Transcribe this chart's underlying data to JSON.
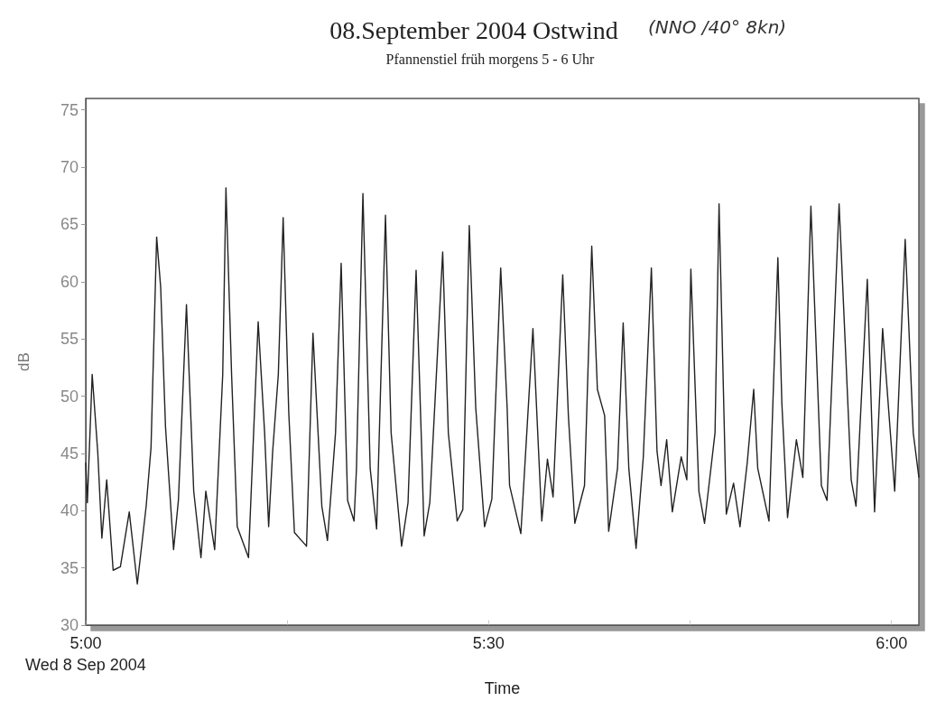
{
  "chart_data": {
    "type": "line",
    "title": "08.September 2004 Ostwind",
    "subtitle": "Pfannenstiel früh morgens 5 - 6 Uhr",
    "xlabel": "Time",
    "ylabel": "dB",
    "annotations": [
      "(NNO /40° 8kn)"
    ],
    "xlim": [
      5,
      6.034
    ],
    "ylim": [
      30,
      76
    ],
    "xticks": [
      {
        "value": 5,
        "label": "5:00\nWed 8 Sep 2004"
      },
      {
        "value": 5.25,
        "label": null
      },
      {
        "value": 5.5,
        "label": "5:30"
      },
      {
        "value": 5.75,
        "label": null
      },
      {
        "value": 6,
        "label": "6:00"
      }
    ],
    "yticks": [
      30,
      35,
      40,
      45,
      50,
      55,
      60,
      65,
      70,
      75
    ],
    "grid": false,
    "marker": "none",
    "line_style": "solid",
    "series": [
      {
        "color": "#222222",
        "x": [
          5.0,
          5.002,
          5.008,
          5.015,
          5.02,
          5.026,
          5.034,
          5.043,
          5.054,
          5.064,
          5.075,
          5.081,
          5.088,
          5.093,
          5.099,
          5.109,
          5.115,
          5.125,
          5.134,
          5.143,
          5.149,
          5.16,
          5.17,
          5.174,
          5.181,
          5.188,
          5.202,
          5.214,
          5.222,
          5.227,
          5.232,
          5.239,
          5.245,
          5.252,
          5.259,
          5.274,
          5.282,
          5.293,
          5.3,
          5.31,
          5.317,
          5.325,
          5.333,
          5.336,
          5.344,
          5.353,
          5.361,
          5.372,
          5.379,
          5.392,
          5.4,
          5.41,
          5.417,
          5.42,
          5.427,
          5.443,
          5.45,
          5.461,
          5.468,
          5.476,
          5.484,
          5.495,
          5.504,
          5.515,
          5.523,
          5.526,
          5.54,
          5.555,
          5.562,
          5.566,
          5.573,
          5.58,
          5.592,
          5.599,
          5.607,
          5.619,
          5.628,
          5.635,
          5.644,
          5.649,
          5.66,
          5.667,
          5.674,
          5.683,
          5.692,
          5.702,
          5.709,
          5.714,
          5.721,
          5.728,
          5.739,
          5.746,
          5.751,
          5.761,
          5.768,
          5.781,
          5.786,
          5.795,
          5.804,
          5.812,
          5.821,
          5.829,
          5.834,
          5.848,
          5.854,
          5.859,
          5.864,
          5.871,
          5.882,
          5.89,
          5.9,
          5.913,
          5.92,
          5.935,
          5.95,
          5.956,
          5.97,
          5.979,
          5.989,
          6.004,
          6.017,
          6.027,
          6.034
        ],
        "values": [
          44.2,
          40.7,
          51.9,
          45.0,
          37.6,
          42.7,
          34.8,
          35.1,
          39.9,
          33.6,
          40.4,
          45.5,
          63.9,
          59.5,
          47.3,
          36.6,
          40.9,
          58.0,
          41.7,
          35.9,
          41.7,
          36.6,
          51.9,
          68.2,
          51.9,
          38.6,
          35.9,
          56.5,
          46.8,
          38.6,
          45.2,
          51.9,
          65.6,
          48.5,
          38.1,
          36.9,
          55.5,
          40.4,
          37.4,
          46.8,
          61.6,
          40.9,
          39.1,
          43.7,
          67.7,
          43.7,
          38.4,
          65.8,
          46.8,
          36.9,
          40.7,
          61.0,
          45.2,
          37.8,
          40.7,
          62.6,
          46.8,
          39.1,
          40.1,
          64.9,
          49.0,
          38.6,
          41.0,
          61.2,
          49.0,
          42.2,
          38.0,
          55.9,
          45.2,
          39.1,
          44.5,
          41.2,
          60.6,
          48.3,
          38.9,
          42.2,
          63.1,
          50.6,
          48.3,
          38.2,
          43.7,
          56.4,
          43.7,
          36.7,
          44.7,
          61.2,
          45.2,
          42.2,
          46.2,
          39.9,
          44.7,
          42.7,
          61.1,
          41.7,
          38.9,
          46.8,
          66.8,
          39.7,
          42.4,
          38.6,
          44.2,
          50.6,
          43.7,
          39.1,
          51.9,
          62.1,
          49.3,
          39.4,
          46.2,
          42.9,
          66.6,
          42.2,
          40.9,
          66.8,
          42.7,
          40.4,
          60.2,
          39.9,
          55.9,
          41.7,
          63.7,
          46.8,
          42.9
        ]
      }
    ]
  }
}
